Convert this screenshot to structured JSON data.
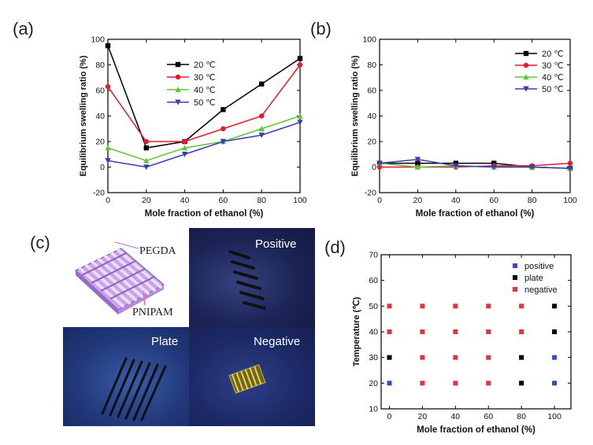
{
  "panel_labels": {
    "a": "(a)",
    "b": "(b)",
    "c": "(c)",
    "d": "(d)"
  },
  "colors": {
    "s20": "#000000",
    "s30": "#e8192c",
    "s40": "#60c63a",
    "s50": "#3a3db0",
    "positive": "#3349d6",
    "plate": "#000000",
    "negative": "#e5323e"
  },
  "chart_data": [
    {
      "id": "a",
      "type": "line",
      "xlabel": "Mole fraction of ethanol (%)",
      "ylabel": "Equilibrium swelling ratio (%)",
      "xlim": [
        0,
        100
      ],
      "ylim": [
        -20,
        100
      ],
      "xticks": [
        0,
        20,
        40,
        60,
        80,
        100
      ],
      "yticks": [
        -20,
        0,
        20,
        40,
        60,
        80,
        100
      ],
      "x": [
        0,
        20,
        40,
        60,
        80,
        100
      ],
      "legend_position": "top-center",
      "series": [
        {
          "name": "20 ℃",
          "color": "#000000",
          "marker": "square",
          "values": [
            95,
            15,
            20,
            45,
            65,
            85
          ]
        },
        {
          "name": "30 ℃",
          "color": "#e8192c",
          "marker": "circle",
          "values": [
            63,
            20,
            20,
            30,
            40,
            80
          ]
        },
        {
          "name": "40 ℃",
          "color": "#60c63a",
          "marker": "triangle",
          "values": [
            15,
            5,
            15,
            20,
            30,
            40
          ]
        },
        {
          "name": "50 ℃",
          "color": "#3a3db0",
          "marker": "triangle-down",
          "values": [
            5,
            0,
            10,
            20,
            25,
            35
          ]
        }
      ]
    },
    {
      "id": "b",
      "type": "line",
      "xlabel": "Mole fraction of ethanol (%)",
      "ylabel": "Equilibrium swelling ratio (%)",
      "xlim": [
        0,
        100
      ],
      "ylim": [
        -20,
        100
      ],
      "xticks": [
        0,
        20,
        40,
        60,
        80,
        100
      ],
      "yticks": [
        -20,
        0,
        20,
        40,
        60,
        80,
        100
      ],
      "x": [
        0,
        20,
        40,
        60,
        80,
        100
      ],
      "legend_position": "top-right",
      "series": [
        {
          "name": "20 ℃",
          "color": "#000000",
          "marker": "square",
          "values": [
            3,
            3,
            3,
            3,
            0,
            -1
          ]
        },
        {
          "name": "30 ℃",
          "color": "#e8192c",
          "marker": "circle",
          "values": [
            0,
            0,
            0,
            1,
            1,
            3
          ]
        },
        {
          "name": "40 ℃",
          "color": "#60c63a",
          "marker": "triangle",
          "values": [
            3,
            0,
            1,
            0,
            0,
            -1
          ]
        },
        {
          "name": "50 ℃",
          "color": "#3a3db0",
          "marker": "triangle-down",
          "values": [
            3,
            6,
            1,
            0,
            0,
            -1
          ]
        }
      ]
    },
    {
      "id": "d",
      "type": "scatter",
      "xlabel": "Mole fraction of ethanol (%)",
      "ylabel": "Temperature (℃)",
      "xlim": [
        -5,
        110
      ],
      "ylim": [
        10,
        70
      ],
      "xticks": [
        0,
        20,
        40,
        60,
        80,
        100
      ],
      "yticks": [
        10,
        20,
        30,
        40,
        50,
        60,
        70
      ],
      "legend_position": "top-right",
      "series": [
        {
          "name": "positive",
          "color": "#3349d6",
          "points": [
            [
              0,
              20
            ],
            [
              100,
              20
            ],
            [
              100,
              30
            ]
          ]
        },
        {
          "name": "plate",
          "color": "#000000",
          "points": [
            [
              0,
              30
            ],
            [
              80,
              20
            ],
            [
              80,
              30
            ],
            [
              100,
              40
            ],
            [
              100,
              50
            ]
          ]
        },
        {
          "name": "negative",
          "color": "#e5323e",
          "points": [
            [
              0,
              40
            ],
            [
              0,
              50
            ],
            [
              20,
              20
            ],
            [
              20,
              30
            ],
            [
              20,
              40
            ],
            [
              20,
              50
            ],
            [
              40,
              20
            ],
            [
              40,
              30
            ],
            [
              40,
              40
            ],
            [
              40,
              50
            ],
            [
              60,
              20
            ],
            [
              60,
              30
            ],
            [
              60,
              40
            ],
            [
              60,
              50
            ],
            [
              80,
              40
            ],
            [
              80,
              50
            ]
          ]
        }
      ]
    }
  ],
  "panel_c": {
    "diagram_labels": {
      "top": "PEGDA",
      "bottom": "PNIPAM"
    },
    "photo_labels": {
      "positive": "Positive",
      "plate": "Plate",
      "negative": "Negative"
    }
  }
}
